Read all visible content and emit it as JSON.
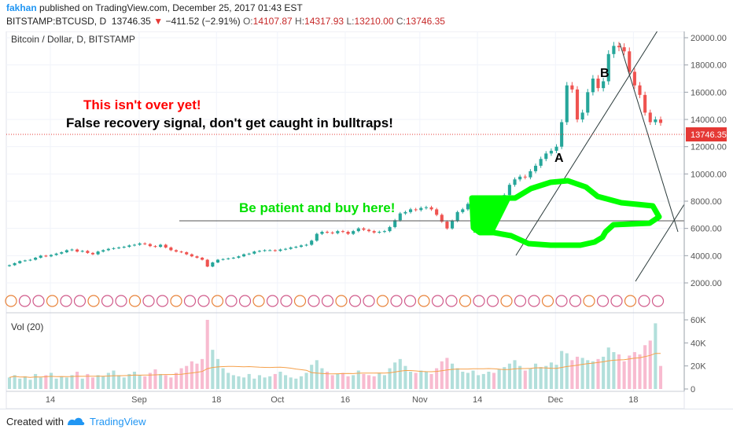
{
  "header": {
    "author": "fakhan",
    "published": "published on TradingView.com, December 25, 2017 01:43 EST",
    "symbol": "BITSTAMP:BTCUSD, D",
    "last": "13746.35",
    "change": "−411.52 (−2.91%)",
    "o_label": "O:",
    "o_value": "14107.87",
    "h_label": "H:",
    "h_value": "14317.93",
    "l_label": "L:",
    "l_value": "13210.00",
    "c_label": "C:",
    "c_value": "13746.35"
  },
  "footer": {
    "created_with": "Created with",
    "brand": "TradingView"
  },
  "chart_data": {
    "type": "candlestick",
    "title": "Bitcoin / Dollar, D, BITSTAMP",
    "price_axis": {
      "ticks": [
        "20000.00",
        "18000.00",
        "16000.00",
        "14000.00",
        "12000.00",
        "10000.00",
        "8000.00",
        "6000.00",
        "4000.00",
        "2000.00"
      ],
      "ylim": [
        2000,
        20500
      ],
      "last_price_label": "13746.35"
    },
    "x_axis": {
      "tick_labels": [
        "14",
        "Sep",
        "18",
        "Oct",
        "16",
        "Nov",
        "14",
        "Dec",
        "18"
      ]
    },
    "volume": {
      "title": "Vol (20)",
      "ticks": [
        "60K",
        "40K",
        "20K",
        "0"
      ],
      "ylim": [
        0,
        60000
      ]
    },
    "close": [
      3300,
      3450,
      3600,
      3650,
      3700,
      3850,
      4000,
      3950,
      4050,
      4150,
      4250,
      4400,
      4450,
      4300,
      4350,
      4200,
      4100,
      4300,
      4400,
      4500,
      4550,
      4600,
      4650,
      4750,
      4800,
      4900,
      4850,
      4700,
      4650,
      4800,
      4600,
      4400,
      4300,
      4250,
      4100,
      3950,
      3850,
      3700,
      3200,
      3500,
      3700,
      3750,
      3800,
      3850,
      3950,
      4100,
      4150,
      4300,
      4350,
      4400,
      4400,
      4350,
      4450,
      4500,
      4600,
      4650,
      4750,
      4800,
      5100,
      5600,
      5750,
      5700,
      5650,
      5800,
      5750,
      5600,
      5800,
      6000,
      5900,
      5800,
      5700,
      5750,
      5800,
      6100,
      6600,
      7100,
      7200,
      7400,
      7350,
      7500,
      7550,
      7400,
      7000,
      6500,
      6000,
      6550,
      7200,
      7400,
      7800,
      7900,
      8000,
      8100,
      8200,
      8100,
      8300,
      8450,
      9200,
      9600,
      9800,
      9750,
      10200,
      10600,
      11100,
      11500,
      11700,
      12000,
      13800,
      16500,
      16200,
      14000,
      14500,
      16000,
      17000,
      16300,
      16800,
      18800,
      19400,
      19300,
      19000,
      17500,
      16500,
      15800,
      14500,
      13800,
      14000,
      13746
    ],
    "volume_values": [
      10,
      12,
      9,
      11,
      8,
      13,
      10,
      12,
      14,
      9,
      11,
      10,
      12,
      15,
      9,
      13,
      10,
      12,
      11,
      14,
      16,
      12,
      10,
      13,
      15,
      12,
      11,
      14,
      17,
      13,
      12,
      10,
      14,
      18,
      20,
      24,
      22,
      26,
      60,
      34,
      26,
      18,
      14,
      12,
      11,
      10,
      13,
      9,
      12,
      10,
      11,
      13,
      15,
      12,
      10,
      9,
      11,
      14,
      21,
      25,
      18,
      15,
      12,
      13,
      14,
      11,
      12,
      16,
      13,
      12,
      11,
      14,
      12,
      18,
      23,
      26,
      20,
      15,
      14,
      16,
      15,
      13,
      18,
      24,
      27,
      22,
      18,
      15,
      14,
      16,
      12,
      13,
      15,
      14,
      17,
      19,
      22,
      25,
      20,
      16,
      18,
      22,
      19,
      20,
      23,
      21,
      33,
      31,
      25,
      28,
      27,
      25,
      24,
      26,
      28,
      36,
      32,
      30,
      24,
      29,
      32,
      30,
      38,
      42,
      57,
      20
    ],
    "annotations": [
      {
        "text": "This isn't over yet!",
        "color": "#ff0000"
      },
      {
        "text": "False recovery signal, don't get caught in bulltraps!",
        "color": "#000000"
      },
      {
        "text": "Be patient and buy here!",
        "color": "#00e000"
      },
      {
        "text": "A",
        "color": "#000000"
      },
      {
        "text": "B",
        "color": "#000000"
      }
    ],
    "horizontal_line": 8000,
    "colors": {
      "up": "#26a69a",
      "down": "#ef5350",
      "highlight": "#00ff00",
      "price_label_bg": "#e53935",
      "volume_ma": "#f5a04a"
    }
  }
}
